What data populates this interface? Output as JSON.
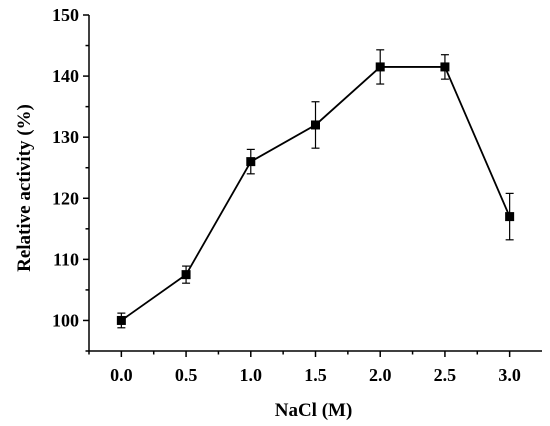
{
  "chart_data": {
    "type": "line",
    "xlabel": "NaCl (M)",
    "ylabel": "Relative activity (%)",
    "xlim": [
      -0.25,
      3.25
    ],
    "ylim": [
      95,
      150
    ],
    "x_ticks": [
      "0.0",
      "0.5",
      "1.0",
      "1.5",
      "2.0",
      "2.5",
      "3.0"
    ],
    "y_ticks": [
      "100",
      "110",
      "120",
      "130",
      "140",
      "150"
    ],
    "x": [
      0.0,
      0.5,
      1.0,
      1.5,
      2.0,
      2.5,
      3.0
    ],
    "series": [
      {
        "values": [
          100.0,
          107.5,
          126.0,
          132.0,
          141.5,
          141.5,
          117.0
        ],
        "errors": [
          1.2,
          1.4,
          2.0,
          3.8,
          2.8,
          2.0,
          3.8
        ],
        "marker": "square",
        "color": "#000000"
      }
    ],
    "grid": false,
    "legend": "none"
  }
}
